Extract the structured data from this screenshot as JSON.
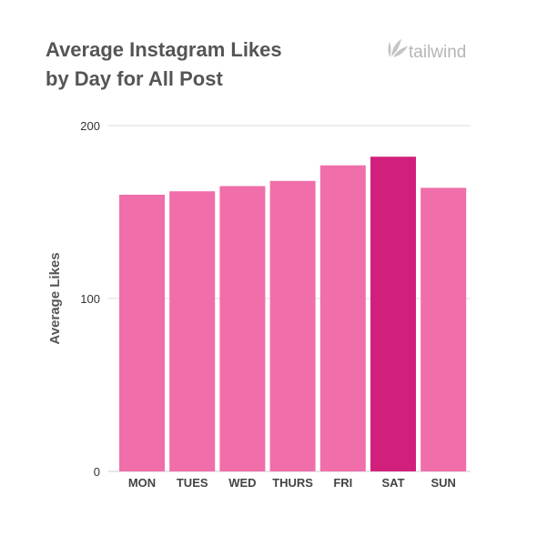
{
  "chart_data": {
    "type": "bar",
    "title_lines": [
      "Average Instagram Likes",
      "by Day for All Post"
    ],
    "xlabel": "",
    "ylabel": "Average Likes",
    "categories": [
      "MON",
      "TUES",
      "WED",
      "THURS",
      "FRI",
      "SAT",
      "SUN"
    ],
    "values": [
      160,
      162,
      165,
      168,
      177,
      182,
      164
    ],
    "highlight_index": 5,
    "ylim": [
      0,
      200
    ],
    "yticks": [
      0,
      100,
      200
    ],
    "grid": true,
    "legend": "none",
    "colors": {
      "bar": "#f06eaa",
      "highlight": "#d1207c"
    }
  },
  "branding": {
    "logo_text": "tailwind",
    "logo_icon": "tailwind-leaf-icon",
    "logo_color": "#b5b5b5"
  }
}
